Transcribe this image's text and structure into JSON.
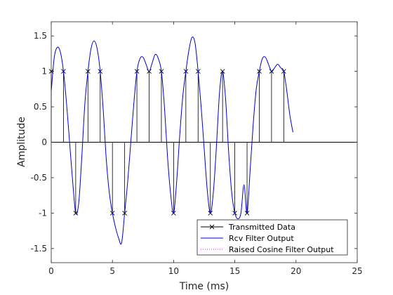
{
  "chart_data": {
    "type": "line",
    "title": "",
    "xlabel": "Time (ms)",
    "ylabel": "Amplitude",
    "xlim": [
      0,
      25
    ],
    "ylim": [
      -1.7,
      1.7
    ],
    "xticks": [
      0,
      5,
      10,
      15,
      20,
      25
    ],
    "yticks": [
      -1.5,
      -1,
      -0.5,
      0,
      0.5,
      1,
      1.5
    ],
    "xtick_labels": [
      "0",
      "5",
      "10",
      "15",
      "20",
      "25"
    ],
    "ytick_labels": [
      "-1.5",
      "-1",
      "-0.5",
      "0",
      "0.5",
      "1",
      "1.5"
    ],
    "grid": false,
    "legend_position": "bottom-right",
    "colors": {
      "stem": "#000000",
      "rcv": "#0000cc",
      "raised": "#ff00ff",
      "axis": "#262626"
    },
    "series": [
      {
        "name": "Transmitted Data",
        "style": "stem",
        "marker": "x",
        "x": [
          0,
          1,
          2,
          3,
          4,
          5,
          6,
          7,
          8,
          9,
          10,
          11,
          12,
          13,
          14,
          15,
          16,
          17,
          18,
          19
        ],
        "values": [
          1,
          1,
          -1,
          1,
          1,
          -1,
          -1,
          1,
          1,
          1,
          -1,
          1,
          1,
          -1,
          1,
          -1,
          -1,
          1,
          1,
          1
        ]
      },
      {
        "name": "Rcv Filter Output",
        "style": "line",
        "x": [
          0,
          0.25,
          0.5,
          0.75,
          1,
          1.25,
          1.5,
          1.75,
          2,
          2.25,
          2.5,
          2.75,
          3,
          3.25,
          3.5,
          3.75,
          4,
          4.25,
          4.5,
          4.75,
          5,
          5.25,
          5.5,
          5.75,
          6,
          6.25,
          6.5,
          6.75,
          7,
          7.25,
          7.5,
          7.75,
          8,
          8.25,
          8.5,
          8.75,
          9,
          9.25,
          9.5,
          9.75,
          10,
          10.25,
          10.5,
          10.75,
          11,
          11.25,
          11.5,
          11.75,
          12,
          12.25,
          12.5,
          12.75,
          13,
          13.25,
          13.5,
          13.75,
          14,
          14.25,
          14.5,
          14.75,
          15,
          15.25,
          15.5,
          15.75,
          16,
          16.25,
          16.5,
          16.75,
          17,
          17.25,
          17.5,
          17.75,
          18,
          18.25,
          18.5,
          18.75,
          19,
          19.25,
          19.5,
          19.75
        ],
        "values": [
          0.72,
          1.2,
          1.34,
          1.27,
          1.0,
          0.55,
          0.0,
          -0.55,
          -1.0,
          -0.85,
          -0.2,
          0.55,
          1.0,
          1.32,
          1.43,
          1.32,
          1.0,
          0.45,
          -0.25,
          -0.72,
          -1.0,
          -1.2,
          -1.35,
          -1.42,
          -1.0,
          -0.55,
          0.0,
          0.55,
          1.0,
          1.18,
          1.2,
          1.1,
          1.0,
          1.12,
          1.24,
          1.18,
          1.0,
          0.5,
          -0.2,
          -0.72,
          -1.0,
          -0.55,
          0.1,
          0.65,
          1.0,
          1.3,
          1.48,
          1.4,
          1.0,
          0.5,
          -0.1,
          -0.68,
          -1.0,
          -0.7,
          -0.05,
          0.7,
          1.0,
          0.6,
          -0.15,
          -0.72,
          -1.0,
          -1.08,
          -1.0,
          -0.6,
          -1.0,
          -0.4,
          0.25,
          0.75,
          1.0,
          1.18,
          1.2,
          1.1,
          1.0,
          1.05,
          1.1,
          1.05,
          1.0,
          0.72,
          0.38,
          0.14
        ]
      },
      {
        "name": "Raised Cosine Filter Output",
        "style": "dotted",
        "x": [],
        "values": []
      }
    ]
  }
}
